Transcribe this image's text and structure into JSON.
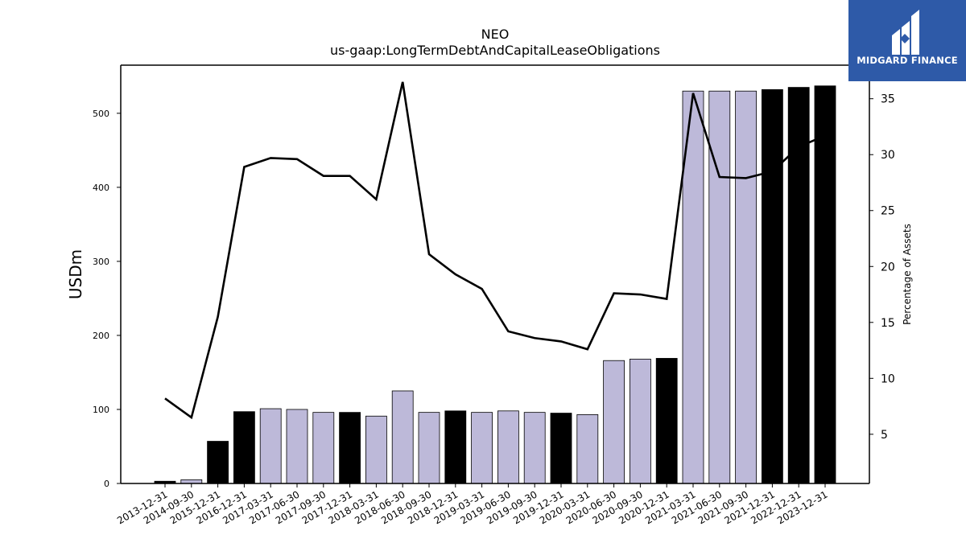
{
  "chart_data": {
    "type": "bar",
    "title": "NEO",
    "subtitle": "us-gaap:LongTermDebtAndCapitalLeaseObligations",
    "ylabel": "USDm",
    "y2label": "Percentage of Assets",
    "ylim": [
      0,
      565
    ],
    "y2lim": [
      0.6,
      38.0
    ],
    "yticks": [
      0,
      100,
      200,
      300,
      400,
      500
    ],
    "y2ticks": [
      5,
      10,
      15,
      20,
      25,
      30,
      35
    ],
    "categories": [
      "2013-12-31",
      "2014-09-30",
      "2015-12-31",
      "2016-12-31",
      "2017-03-31",
      "2017-06-30",
      "2017-09-30",
      "2017-12-31",
      "2018-03-31",
      "2018-06-30",
      "2018-09-30",
      "2018-12-31",
      "2019-03-31",
      "2019-06-30",
      "2019-09-30",
      "2019-12-31",
      "2020-03-31",
      "2020-06-30",
      "2020-09-30",
      "2020-12-31",
      "2021-03-31",
      "2021-06-30",
      "2021-09-30",
      "2021-12-31",
      "2022-12-31",
      "2023-12-31"
    ],
    "series": [
      {
        "kind": "bar",
        "axis": "left",
        "values": [
          3,
          5,
          57,
          97,
          101,
          100,
          96,
          96,
          91,
          125,
          96,
          98,
          96,
          98,
          96,
          95,
          93,
          166,
          168,
          169,
          530,
          530,
          530,
          532,
          535,
          537
        ],
        "colors": [
          "#000000",
          "#bdb9d9",
          "#000000",
          "#000000",
          "#bdb9d9",
          "#bdb9d9",
          "#bdb9d9",
          "#000000",
          "#bdb9d9",
          "#bdb9d9",
          "#bdb9d9",
          "#000000",
          "#bdb9d9",
          "#bdb9d9",
          "#bdb9d9",
          "#000000",
          "#bdb9d9",
          "#bdb9d9",
          "#bdb9d9",
          "#000000",
          "#bdb9d9",
          "#bdb9d9",
          "#bdb9d9",
          "#000000",
          "#000000",
          "#000000"
        ]
      },
      {
        "kind": "line",
        "axis": "right",
        "values": [
          8.2,
          6.5,
          15.5,
          28.9,
          29.7,
          29.6,
          28.1,
          28.1,
          26.0,
          36.5,
          21.1,
          19.3,
          18.0,
          14.2,
          13.6,
          13.3,
          12.6,
          17.6,
          17.5,
          17.1,
          35.5,
          28.0,
          27.9,
          28.5,
          30.7,
          31.7
        ],
        "color": "#000000"
      }
    ],
    "grid": false,
    "legend": "none"
  },
  "logo": {
    "text": "MIDGARD FINANCE",
    "background": "#2e5aa8"
  }
}
